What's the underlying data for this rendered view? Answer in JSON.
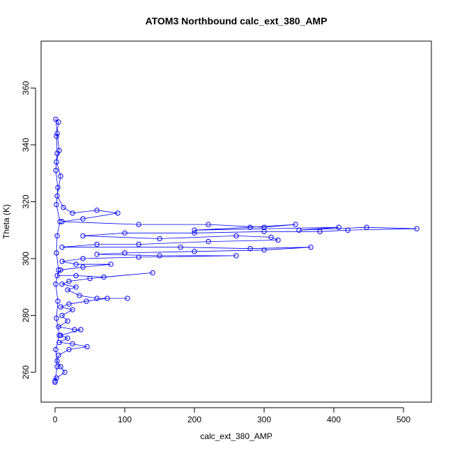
{
  "chart_data": {
    "type": "scatter",
    "title": "ATOM3 Northbound calc_ext_380_AMP",
    "xlabel": "calc_ext_380_AMP",
    "ylabel": "Theta (K)",
    "xlim": [
      -20,
      540
    ],
    "ylim": [
      249.5,
      376.5
    ],
    "xticks": [
      0,
      100,
      200,
      300,
      400,
      500
    ],
    "yticks": [
      260,
      280,
      300,
      320,
      340,
      360
    ],
    "grid": false,
    "marker": "open-circle",
    "connected": true,
    "color": "#0000ff",
    "series": [
      {
        "points": [
          [
            0,
            257
          ],
          [
            3,
            262
          ],
          [
            1,
            268
          ],
          [
            6,
            273
          ],
          [
            2,
            279
          ],
          [
            4,
            285
          ],
          [
            1,
            291
          ],
          [
            5,
            296
          ],
          [
            2,
            302
          ],
          [
            3,
            308
          ],
          [
            7,
            313
          ],
          [
            2,
            319
          ],
          [
            4,
            325
          ],
          [
            1,
            331
          ],
          [
            3,
            337
          ],
          [
            2,
            343
          ],
          [
            5,
            348
          ],
          [
            1,
            349
          ],
          [
            3,
            344
          ],
          [
            6,
            338
          ],
          [
            2,
            334
          ],
          [
            8,
            329
          ],
          [
            3,
            322
          ],
          [
            12,
            318
          ],
          [
            25,
            316
          ],
          [
            60,
            317
          ],
          [
            90,
            316
          ],
          [
            40,
            314
          ],
          [
            10,
            313
          ],
          [
            120,
            312
          ],
          [
            220,
            312
          ],
          [
            300,
            311
          ],
          [
            345,
            312
          ],
          [
            280,
            311
          ],
          [
            200,
            310
          ],
          [
            407,
            311
          ],
          [
            350,
            310
          ],
          [
            447,
            311
          ],
          [
            519,
            310.5
          ],
          [
            420,
            310
          ],
          [
            380,
            309.5
          ],
          [
            300,
            309.5
          ],
          [
            200,
            309
          ],
          [
            100,
            309
          ],
          [
            40,
            308
          ],
          [
            150,
            307
          ],
          [
            260,
            308
          ],
          [
            310,
            307.5
          ],
          [
            320,
            306.5
          ],
          [
            220,
            306
          ],
          [
            120,
            305
          ],
          [
            60,
            305
          ],
          [
            10,
            304
          ],
          [
            180,
            304
          ],
          [
            280,
            303.5
          ],
          [
            367,
            304
          ],
          [
            300,
            303
          ],
          [
            200,
            302.5
          ],
          [
            100,
            302
          ],
          [
            60,
            301.5
          ],
          [
            150,
            301
          ],
          [
            260,
            301
          ],
          [
            120,
            300.5
          ],
          [
            40,
            300
          ],
          [
            10,
            299
          ],
          [
            30,
            298
          ],
          [
            80,
            298
          ],
          [
            40,
            297
          ],
          [
            8,
            296
          ],
          [
            3,
            294
          ],
          [
            30,
            294
          ],
          [
            70,
            293.5
          ],
          [
            140,
            295
          ],
          [
            50,
            293
          ],
          [
            20,
            292
          ],
          [
            10,
            291
          ],
          [
            30,
            290
          ],
          [
            18,
            289
          ],
          [
            35,
            287
          ],
          [
            60,
            286
          ],
          [
            104,
            286
          ],
          [
            75,
            286
          ],
          [
            45,
            285
          ],
          [
            20,
            284
          ],
          [
            8,
            283
          ],
          [
            25,
            282
          ],
          [
            10,
            280
          ],
          [
            18,
            278
          ],
          [
            5,
            276
          ],
          [
            28,
            275
          ],
          [
            37,
            275
          ],
          [
            8,
            273
          ],
          [
            18,
            272
          ],
          [
            6,
            270.5
          ],
          [
            25,
            270
          ],
          [
            46,
            269
          ],
          [
            20,
            268
          ],
          [
            5,
            266
          ],
          [
            3,
            264
          ],
          [
            8,
            262
          ],
          [
            14,
            260
          ],
          [
            2,
            258
          ],
          [
            0,
            256.5
          ]
        ]
      }
    ]
  }
}
